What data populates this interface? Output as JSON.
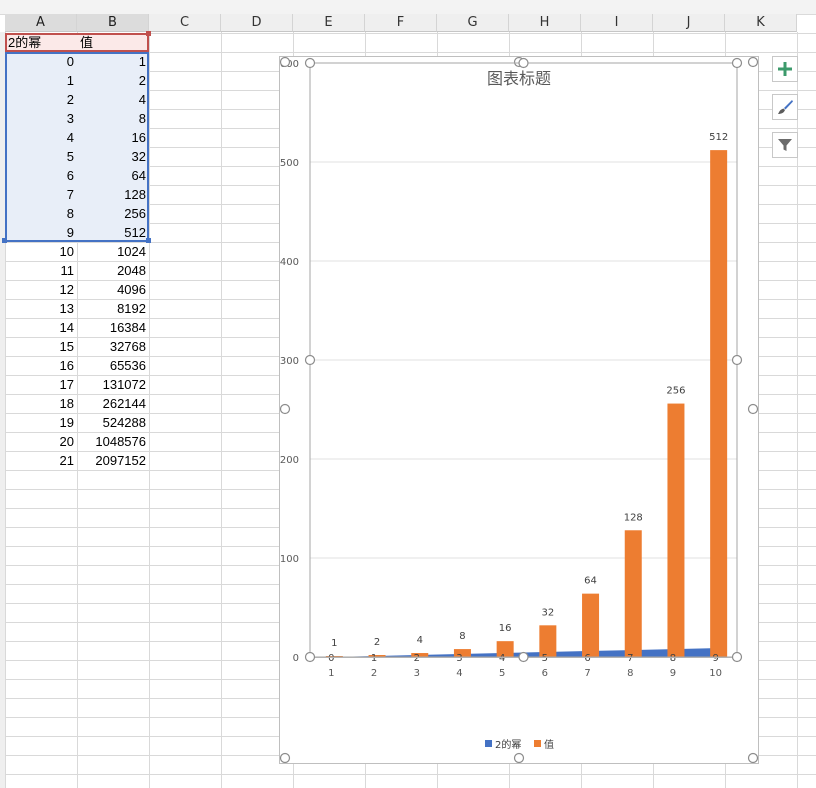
{
  "sheet": {
    "columns": [
      "A",
      "B",
      "C",
      "D",
      "E",
      "F",
      "G",
      "H",
      "I",
      "J",
      "K"
    ],
    "headers": {
      "a1": "2的幂",
      "b1": "值"
    },
    "rows": [
      [
        "0",
        "1"
      ],
      [
        "1",
        "2"
      ],
      [
        "2",
        "4"
      ],
      [
        "3",
        "8"
      ],
      [
        "4",
        "16"
      ],
      [
        "5",
        "32"
      ],
      [
        "6",
        "64"
      ],
      [
        "7",
        "128"
      ],
      [
        "8",
        "256"
      ],
      [
        "9",
        "512"
      ],
      [
        "10",
        "1024"
      ],
      [
        "11",
        "2048"
      ],
      [
        "12",
        "4096"
      ],
      [
        "13",
        "8192"
      ],
      [
        "14",
        "16384"
      ],
      [
        "15",
        "32768"
      ],
      [
        "16",
        "65536"
      ],
      [
        "17",
        "131072"
      ],
      [
        "18",
        "262144"
      ],
      [
        "19",
        "524288"
      ],
      [
        "20",
        "1048576"
      ],
      [
        "21",
        "2097152"
      ]
    ],
    "selected_rows": 10,
    "colors": {
      "selection_blue": "#4472c4",
      "selection_red": "#c0504d",
      "highlight": "#e8eef8",
      "grid": "#d9d9d9"
    }
  },
  "chart_data": {
    "type": "bar",
    "title": "图表标题",
    "categories": [
      "1",
      "2",
      "3",
      "4",
      "5",
      "6",
      "7",
      "8",
      "9",
      "10"
    ],
    "series": [
      {
        "name": "2的幂",
        "kind": "area",
        "color": "#4472c4",
        "values": [
          0,
          1,
          2,
          3,
          4,
          5,
          6,
          7,
          8,
          9
        ]
      },
      {
        "name": "值",
        "kind": "bar",
        "color": "#ed7d31",
        "values": [
          1,
          2,
          4,
          8,
          16,
          32,
          64,
          128,
          256,
          512
        ]
      }
    ],
    "yticks": [
      "0",
      "100",
      "200",
      "300",
      "400",
      "500",
      "600"
    ],
    "ylim": [
      0,
      600
    ],
    "grid": true,
    "legend_position": "bottom"
  },
  "chart_tools": [
    {
      "name": "chart-elements-button",
      "icon": "plus-icon"
    },
    {
      "name": "chart-styles-button",
      "icon": "brush-icon"
    },
    {
      "name": "chart-filters-button",
      "icon": "filter-icon"
    }
  ]
}
